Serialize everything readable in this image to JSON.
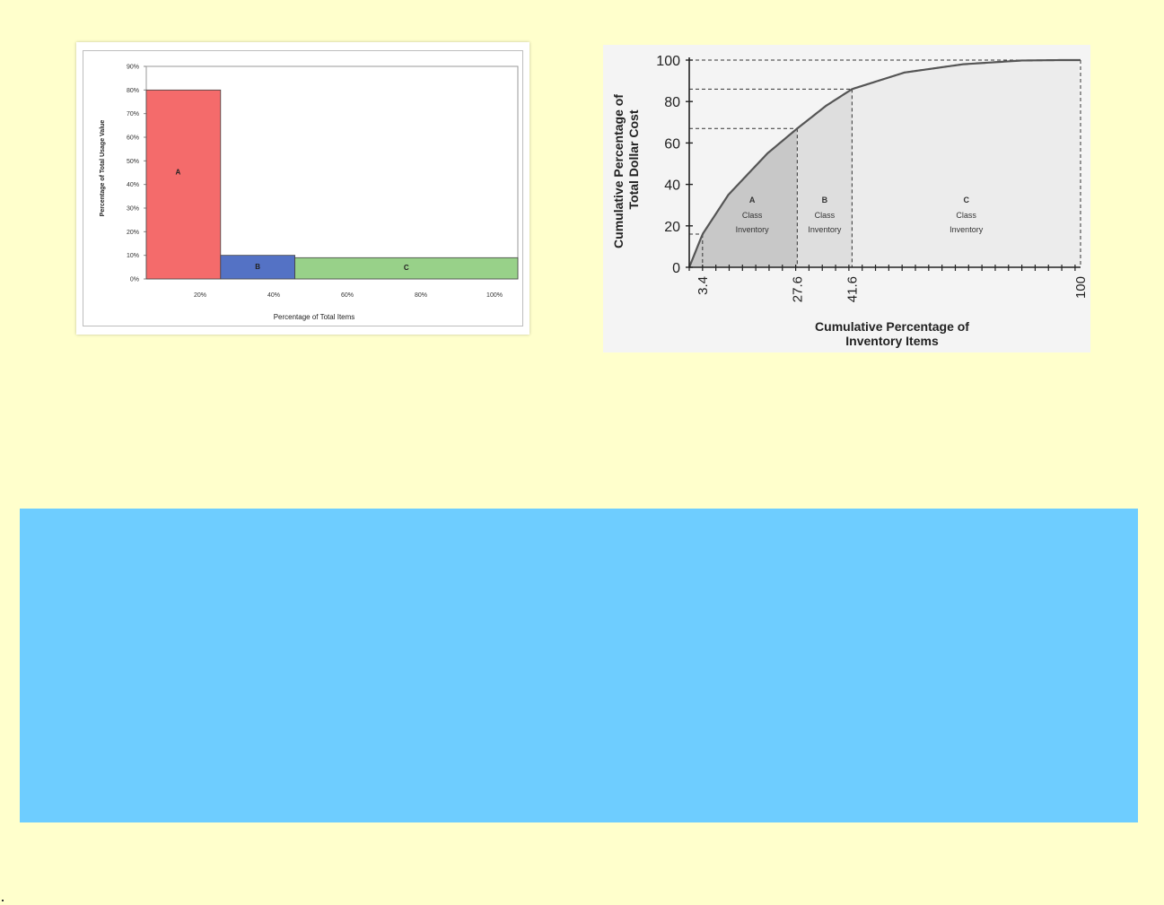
{
  "chart_data": [
    {
      "type": "bar",
      "categories": [
        "A",
        "B",
        "C"
      ],
      "values": [
        80,
        10,
        9
      ],
      "category_x_ranges": [
        [
          0,
          20
        ],
        [
          20,
          40
        ],
        [
          40,
          100
        ]
      ],
      "bar_labels": [
        "A",
        "B",
        "C"
      ],
      "colors": [
        "#f46b6b",
        "#5472c5",
        "#98d189"
      ],
      "ylim": [
        0,
        90
      ],
      "yticks": [
        "0%",
        "10%",
        "20%",
        "30%",
        "40%",
        "50%",
        "60%",
        "70%",
        "80%",
        "90%"
      ],
      "xticks": [
        "20%",
        "40%",
        "60%",
        "80%",
        "100%"
      ],
      "xlabel": "Percentage of Total Items",
      "ylabel": "Percentage of Total Usage Value",
      "grid": false
    },
    {
      "type": "line",
      "xlabel_line1": "Cumulative Percentage of",
      "xlabel_line2": "Inventory Items",
      "ylabel_line1": "Cumulative Percentage of",
      "ylabel_line2": "Total Dollar Cost",
      "xlim": [
        0,
        100
      ],
      "ylim": [
        0,
        100
      ],
      "yticks": [
        "0",
        "20",
        "40",
        "60",
        "80",
        "100"
      ],
      "xtick_labels": [
        "3.4",
        "27.6",
        "41.6",
        "100"
      ],
      "xtick_values": [
        3.4,
        27.6,
        41.6,
        100
      ],
      "curve": {
        "x": [
          0,
          3.4,
          10,
          20,
          27.6,
          35,
          41.6,
          55,
          70,
          85,
          95,
          100
        ],
        "y": [
          0,
          16,
          35,
          55,
          67,
          78,
          86,
          94,
          98,
          99.8,
          100,
          100
        ]
      },
      "reference_points": [
        {
          "x": 3.4,
          "y": 16
        },
        {
          "x": 27.6,
          "y": 67
        },
        {
          "x": 41.6,
          "y": 86
        },
        {
          "x": 100,
          "y": 100
        }
      ],
      "regions": [
        {
          "title": "A",
          "line2": "Class",
          "line3": "Inventory",
          "x_range": [
            0,
            27.6
          ],
          "fill": "#c8c8c8"
        },
        {
          "title": "B",
          "line2": "Class",
          "line3": "Inventory",
          "x_range": [
            27.6,
            41.6
          ],
          "fill": "#dedede"
        },
        {
          "title": "C",
          "line2": "Class",
          "line3": "Inventory",
          "x_range": [
            41.6,
            100
          ],
          "fill": "#ececec"
        }
      ],
      "grid": false
    }
  ],
  "colors": {
    "page_background": "#ffffcc",
    "blue_band": "#6ecdff"
  }
}
